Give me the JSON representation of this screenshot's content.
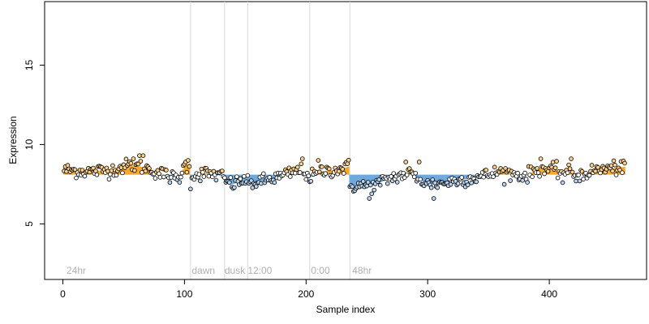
{
  "chart_data": {
    "type": "scatter",
    "title": "",
    "xlabel": "Sample index",
    "ylabel": "Expression",
    "xlim": [
      -15,
      480
    ],
    "ylim": [
      1.5,
      19
    ],
    "x_ticks": [
      0,
      100,
      200,
      300,
      400
    ],
    "x_tick_labels": [
      "0",
      "100",
      "200",
      "300",
      "400"
    ],
    "y_ticks": [
      5,
      10,
      15
    ],
    "y_tick_labels": [
      "5",
      "10",
      "15"
    ],
    "grid": false,
    "legend": "none",
    "baseline": 8.1,
    "colors": {
      "above": "#f5a623",
      "below": "#6fa8dc",
      "marker_stroke": "#000000",
      "vline": "#d9d9d9",
      "annotation": "#b0b0b0"
    },
    "annotations": [
      {
        "x": 3,
        "label": "24hr"
      },
      {
        "x": 106,
        "label": "dawn"
      },
      {
        "x": 133,
        "label": "dusk"
      },
      {
        "x": 152,
        "label": "12:00"
      },
      {
        "x": 204,
        "label": "0:00"
      },
      {
        "x": 238,
        "label": "48hr"
      }
    ],
    "vlines": [
      105,
      133,
      152,
      203,
      236
    ],
    "segments": [
      {
        "x_start": 1,
        "x_end": 104,
        "trend": [
          [
            1,
            8.4
          ],
          [
            20,
            8.3
          ],
          [
            40,
            8.4
          ],
          [
            55,
            8.7
          ],
          [
            65,
            8.6
          ],
          [
            80,
            8.2
          ],
          [
            95,
            7.8
          ],
          [
            100,
            8.6
          ],
          [
            104,
            8.8
          ]
        ]
      },
      {
        "x_start": 105,
        "x_end": 132,
        "trend": [
          [
            105,
            8.0
          ],
          [
            115,
            8.2
          ],
          [
            125,
            8.1
          ],
          [
            132,
            8.0
          ]
        ]
      },
      {
        "x_start": 133,
        "x_end": 151,
        "trend": [
          [
            133,
            7.7
          ],
          [
            140,
            7.5
          ],
          [
            151,
            7.8
          ]
        ]
      },
      {
        "x_start": 152,
        "x_end": 202,
        "trend": [
          [
            152,
            7.5
          ],
          [
            165,
            7.7
          ],
          [
            180,
            8.0
          ],
          [
            195,
            8.4
          ],
          [
            202,
            8.1
          ]
        ]
      },
      {
        "x_start": 203,
        "x_end": 235,
        "trend": [
          [
            203,
            7.9
          ],
          [
            212,
            8.3
          ],
          [
            225,
            8.4
          ],
          [
            235,
            8.6
          ]
        ]
      },
      {
        "x_start": 236,
        "x_end": 462,
        "trend": [
          [
            236,
            7.4
          ],
          [
            255,
            7.4
          ],
          [
            270,
            7.9
          ],
          [
            285,
            8.2
          ],
          [
            300,
            7.5
          ],
          [
            315,
            7.6
          ],
          [
            330,
            7.8
          ],
          [
            345,
            8.0
          ],
          [
            360,
            8.3
          ],
          [
            380,
            8.0
          ],
          [
            392,
            8.5
          ],
          [
            410,
            8.3
          ],
          [
            425,
            8.1
          ],
          [
            440,
            8.4
          ],
          [
            462,
            8.6
          ]
        ]
      }
    ],
    "notable_points": [
      {
        "x": 58,
        "y": 9.1
      },
      {
        "x": 63,
        "y": 9.3
      },
      {
        "x": 66,
        "y": 9.3
      },
      {
        "x": 101,
        "y": 8.9
      },
      {
        "x": 103,
        "y": 9.0
      },
      {
        "x": 105,
        "y": 7.2
      },
      {
        "x": 197,
        "y": 9.1
      },
      {
        "x": 210,
        "y": 9.0
      },
      {
        "x": 252,
        "y": 6.6
      },
      {
        "x": 305,
        "y": 6.6
      },
      {
        "x": 282,
        "y": 8.9
      },
      {
        "x": 293,
        "y": 8.9
      },
      {
        "x": 393,
        "y": 9.1
      },
      {
        "x": 418,
        "y": 9.1
      },
      {
        "x": 411,
        "y": 7.6
      },
      {
        "x": 422,
        "y": 7.7
      }
    ],
    "n_points": 462
  }
}
